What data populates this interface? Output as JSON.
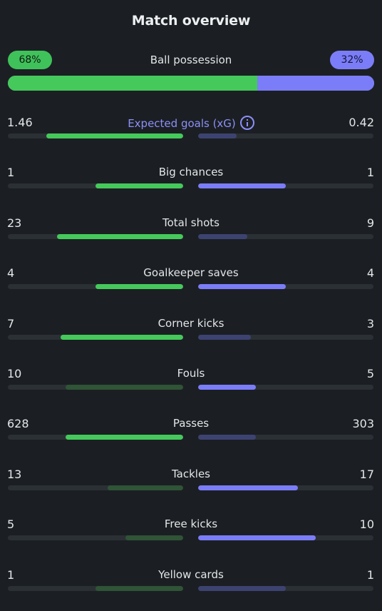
{
  "header": {
    "title": "Match overview"
  },
  "possession": {
    "label": "Ball possession",
    "home_text": "68%",
    "away_text": "32%",
    "home_fraction": 0.68,
    "away_fraction": 0.32
  },
  "colors": {
    "background": "#1b1f23",
    "home": "#45c95b",
    "home_dim": "#2f5436",
    "away": "#7b7df8",
    "away_dim": "#3d4370",
    "track": "#2b3035"
  },
  "stats": [
    {
      "label": "Expected goals (xG)",
      "home": "1.46",
      "away": "0.42",
      "home_fill": 0.78,
      "away_fill": 0.22,
      "home_win": true,
      "away_win": false,
      "accent": true,
      "info_icon": "info-icon"
    },
    {
      "label": "Big chances",
      "home": "1",
      "away": "1",
      "home_fill": 0.5,
      "away_fill": 0.5,
      "home_win": true,
      "away_win": true
    },
    {
      "label": "Total shots",
      "home": "23",
      "away": "9",
      "home_fill": 0.72,
      "away_fill": 0.28,
      "home_win": true,
      "away_win": false
    },
    {
      "label": "Goalkeeper saves",
      "home": "4",
      "away": "4",
      "home_fill": 0.5,
      "away_fill": 0.5,
      "home_win": true,
      "away_win": true
    },
    {
      "label": "Corner kicks",
      "home": "7",
      "away": "3",
      "home_fill": 0.7,
      "away_fill": 0.3,
      "home_win": true,
      "away_win": false
    },
    {
      "label": "Fouls",
      "home": "10",
      "away": "5",
      "home_fill": 0.67,
      "away_fill": 0.33,
      "home_win": false,
      "away_win": true
    },
    {
      "label": "Passes",
      "home": "628",
      "away": "303",
      "home_fill": 0.67,
      "away_fill": 0.33,
      "home_win": true,
      "away_win": false
    },
    {
      "label": "Tackles",
      "home": "13",
      "away": "17",
      "home_fill": 0.43,
      "away_fill": 0.57,
      "home_win": false,
      "away_win": true
    },
    {
      "label": "Free kicks",
      "home": "5",
      "away": "10",
      "home_fill": 0.33,
      "away_fill": 0.67,
      "home_win": false,
      "away_win": true
    },
    {
      "label": "Yellow cards",
      "home": "1",
      "away": "1",
      "home_fill": 0.5,
      "away_fill": 0.5,
      "home_win": false,
      "away_win": false
    }
  ]
}
